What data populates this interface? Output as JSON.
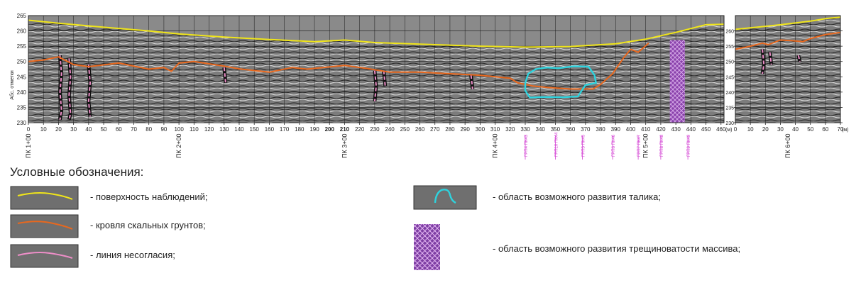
{
  "chart_data": [
    {
      "type": "line",
      "title": "",
      "ylabel": "Абс. отметки",
      "xunit": "(м)",
      "xlim": [
        0,
        462
      ],
      "ylim": [
        230,
        265
      ],
      "y_ticks": [
        230,
        235,
        240,
        245,
        250,
        255,
        260,
        265
      ],
      "x_ticks": [
        0,
        10,
        20,
        30,
        40,
        50,
        60,
        70,
        80,
        90,
        100,
        110,
        120,
        130,
        140,
        150,
        160,
        170,
        180,
        190,
        200,
        210,
        220,
        230,
        240,
        250,
        260,
        270,
        280,
        290,
        300,
        310,
        320,
        330,
        340,
        350,
        360,
        370,
        380,
        390,
        400,
        410,
        420,
        430,
        440,
        450,
        460
      ],
      "x_tick_labels": [
        "0",
        "10",
        "20",
        "30",
        "40",
        "50",
        "60",
        "70",
        "80",
        "90",
        "100",
        "110",
        "120",
        "130",
        "140",
        "150",
        "160",
        "170",
        "180",
        "190",
        "200",
        "210",
        "220",
        "230",
        "240",
        "250",
        "260",
        "270",
        "280",
        "290",
        "300",
        "310",
        "320",
        "330",
        "340",
        "350",
        "360",
        "370",
        "380",
        "390",
        "400",
        "410",
        "420",
        "430",
        "440",
        "450",
        "460"
      ],
      "grid": true,
      "stations": [
        {
          "x": 0,
          "label": "ПК 1+00"
        },
        {
          "x": 100,
          "label": "ПК 2+00"
        },
        {
          "x": 210,
          "label": "ПК 3+00"
        },
        {
          "x": 310,
          "label": "ПК 4+00"
        },
        {
          "x": 410,
          "label": "ПК 5+00"
        }
      ],
      "wells": [
        {
          "x": 330,
          "label": "ГРП4 ПК43"
        },
        {
          "x": 350,
          "label": "ГРП10 ПК44"
        },
        {
          "x": 368,
          "label": "ГРП5 ПК45"
        },
        {
          "x": 388,
          "label": "ГРП6 ПК46"
        },
        {
          "x": 405,
          "label": "ГРП7 ПК47"
        },
        {
          "x": 420,
          "label": "ГРП8 ПК48"
        },
        {
          "x": 438,
          "label": "ГРП9 ПК49"
        }
      ],
      "series": [
        {
          "role": "surface",
          "color": "#f0e51a",
          "points": [
            [
              0,
              263.5
            ],
            [
              20,
              262.5
            ],
            [
              50,
              261.2
            ],
            [
              80,
              260
            ],
            [
              100,
              259
            ],
            [
              130,
              258
            ],
            [
              160,
              257.2
            ],
            [
              190,
              256.5
            ],
            [
              210,
              257
            ],
            [
              230,
              256.2
            ],
            [
              270,
              255.5
            ],
            [
              300,
              255
            ],
            [
              330,
              254.7
            ],
            [
              360,
              254.9
            ],
            [
              390,
              255.8
            ],
            [
              410,
              257.3
            ],
            [
              430,
              259.5
            ],
            [
              450,
              262
            ],
            [
              462,
              262.2
            ]
          ]
        },
        {
          "role": "bedrock",
          "color": "#e8681e",
          "points": [
            [
              0,
              250
            ],
            [
              10,
              250.5
            ],
            [
              20,
              251.5
            ],
            [
              30,
              249
            ],
            [
              40,
              248.3
            ],
            [
              60,
              249.5
            ],
            [
              80,
              247.5
            ],
            [
              90,
              248
            ],
            [
              95,
              246.8
            ],
            [
              100,
              249.5
            ],
            [
              110,
              250
            ],
            [
              130,
              248.5
            ],
            [
              140,
              247.6
            ],
            [
              160,
              246.5
            ],
            [
              175,
              248
            ],
            [
              185,
              247.5
            ],
            [
              210,
              248.7
            ],
            [
              225,
              247.7
            ],
            [
              240,
              246.5
            ],
            [
              260,
              246.5
            ],
            [
              280,
              246
            ],
            [
              300,
              245.5
            ],
            [
              320,
              244.5
            ],
            [
              325,
              243
            ],
            [
              335,
              242
            ],
            [
              345,
              241.5
            ],
            [
              360,
              241
            ],
            [
              375,
              241
            ],
            [
              380,
              242.5
            ],
            [
              388,
              246
            ],
            [
              395,
              251
            ],
            [
              400,
              254
            ],
            [
              405,
              253
            ],
            [
              412,
              256
            ]
          ]
        },
        {
          "role": "taliks",
          "color": "#2ed3de",
          "points": [
            [
              330,
              243
            ],
            [
              332,
              246
            ],
            [
              337,
              247.5
            ],
            [
              344,
              248
            ],
            [
              352,
              247.8
            ],
            [
              362,
              248.4
            ],
            [
              372,
              248.3
            ],
            [
              376,
              245.5
            ],
            [
              377,
              243
            ],
            [
              370,
              242.3
            ],
            [
              365,
              238.6
            ],
            [
              355,
              238.3
            ],
            [
              343,
              238.4
            ],
            [
              333,
              238.2
            ],
            [
              330,
              240.5
            ],
            [
              330,
              243
            ]
          ]
        }
      ],
      "unconformities": [
        {
          "points": [
            [
              21,
              252
            ],
            [
              22,
              246
            ],
            [
              21,
              240
            ],
            [
              22,
              234
            ],
            [
              21,
              231
            ]
          ]
        },
        {
          "points": [
            [
              27,
              251
            ],
            [
              28,
              245
            ],
            [
              27,
              239
            ],
            [
              28,
              233
            ],
            [
              27,
              231
            ]
          ]
        },
        {
          "points": [
            [
              40,
              249
            ],
            [
              41,
              243
            ],
            [
              40,
              237
            ],
            [
              41,
              232
            ]
          ]
        },
        {
          "points": [
            [
              130,
              248
            ],
            [
              131,
              243
            ]
          ]
        },
        {
          "points": [
            [
              230,
              247
            ],
            [
              231,
              242
            ],
            [
              230,
              237
            ]
          ]
        },
        {
          "points": [
            [
              236,
              247
            ],
            [
              237,
              242
            ]
          ]
        },
        {
          "points": [
            [
              294,
              245.5
            ],
            [
              295,
              241
            ]
          ]
        }
      ],
      "fracture_zone": {
        "x_from": 426,
        "x_to": 436,
        "y_from": 230,
        "y_to": 257
      }
    },
    {
      "type": "line",
      "title": "",
      "xunit": "(м)",
      "xlim": [
        0,
        70
      ],
      "ylim": [
        230,
        265
      ],
      "y_ticks": [
        230,
        235,
        240,
        245,
        250,
        255,
        260
      ],
      "x_ticks": [
        0,
        10,
        20,
        30,
        40,
        50,
        60,
        70
      ],
      "x_tick_labels": [
        "0",
        "10",
        "20",
        "30",
        "40",
        "50",
        "60",
        "70"
      ],
      "grid": true,
      "stations": [
        {
          "x": 35,
          "label": "ПК 6+00"
        }
      ],
      "series": [
        {
          "role": "surface",
          "color": "#f0e51a",
          "points": [
            [
              0,
              260.5
            ],
            [
              10,
              261
            ],
            [
              20,
              261.5
            ],
            [
              30,
              262
            ],
            [
              40,
              262.6
            ],
            [
              50,
              263.2
            ],
            [
              60,
              264
            ],
            [
              70,
              264.5
            ]
          ]
        },
        {
          "role": "bedrock",
          "color": "#e8681e",
          "points": [
            [
              0,
              254
            ],
            [
              10,
              255
            ],
            [
              18,
              256
            ],
            [
              22,
              255.5
            ],
            [
              30,
              257
            ],
            [
              38,
              256.8
            ],
            [
              45,
              256.5
            ],
            [
              50,
              257.5
            ],
            [
              60,
              258.8
            ],
            [
              70,
              259.5
            ]
          ]
        }
      ],
      "unconformities": [
        {
          "points": [
            [
              18,
              254
            ],
            [
              19,
              249
            ],
            [
              18,
              246
            ]
          ]
        },
        {
          "points": [
            [
              23,
              253
            ],
            [
              24,
              249
            ]
          ]
        },
        {
          "points": [
            [
              42,
              252
            ],
            [
              43,
              250
            ]
          ]
        }
      ]
    }
  ],
  "legend": {
    "title": "Условные обозначения:",
    "items": [
      {
        "key": "surface",
        "text": "- поверхность наблюдений;",
        "color": "#f0e51a"
      },
      {
        "key": "bedrock",
        "text": "- кровля скальных грунтов;",
        "color": "#e8681e"
      },
      {
        "key": "unconformity",
        "text": "- линия несогласия;",
        "color": "#ee8ec8"
      },
      {
        "key": "talik",
        "text": "- область возможного развития талика;",
        "color": "#2ed3de"
      },
      {
        "key": "fracture",
        "text": "- область возможного развития трещиноватости массива;",
        "color": "#8b3fae"
      }
    ]
  }
}
